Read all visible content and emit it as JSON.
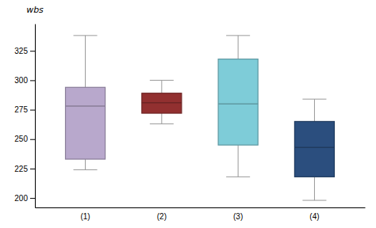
{
  "chart_data": {
    "type": "box",
    "ylabel": "wbs",
    "categories": [
      "(1)",
      "(2)",
      "(3)",
      "(4)"
    ],
    "whisker_low": [
      224,
      263,
      218,
      198
    ],
    "q1": [
      233,
      272,
      245,
      218
    ],
    "median": [
      278,
      281,
      280,
      243
    ],
    "q3": [
      294,
      289,
      318,
      265
    ],
    "whisker_high": [
      338,
      300,
      338,
      284
    ],
    "colors": [
      "#b8a8cc",
      "#923030",
      "#7eccd8",
      "#2b4e7e"
    ],
    "ylim": [
      192,
      348
    ],
    "yticks": [
      200,
      225,
      250,
      275,
      300,
      325
    ]
  }
}
